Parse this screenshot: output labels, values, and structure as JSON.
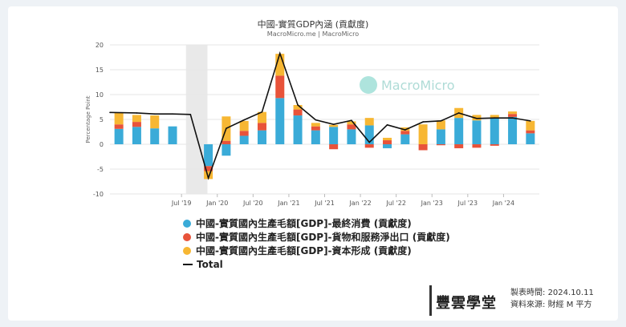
{
  "chart_data": {
    "type": "bar",
    "title": "中國-實質GDP內涵 (貢獻度)",
    "subtitle": "MacroMicro.me | MacroMicro",
    "ylabel": "Percentage Point",
    "ylim": [
      -10,
      20
    ],
    "yticks": [
      -10,
      -5,
      0,
      5,
      10,
      15,
      20
    ],
    "x_tick_labels": [
      "Jul '19",
      "Jan '20",
      "Jul '20",
      "Jan '21",
      "Jul '21",
      "Jan '22",
      "Jul '22",
      "Jan '23",
      "Jul '23",
      "Jan '24"
    ],
    "grid": true,
    "legend": "bottom",
    "stacked": true,
    "categories": [
      "Q3 '18",
      "Q4 '18",
      "Q1 '19",
      "Q2 '19",
      "Q3 '19",
      "Q4 '19",
      "Q1 '20",
      "Q2 '20",
      "Q3 '20",
      "Q4 '20",
      "Q1 '21",
      "Q2 '21",
      "Q3 '21",
      "Q4 '21",
      "Q1 '22",
      "Q2 '22",
      "Q3 '22",
      "Q4 '22",
      "Q1 '23",
      "Q2 '23",
      "Q3 '23",
      "Q4 '23",
      "Q1 '24",
      "Q2 '24"
    ],
    "series": [
      {
        "name": "中國-實質國內生產毛額[GDP]-最終消費 (貢獻度)",
        "color": "#3aabd8",
        "values": [
          3.1,
          3.5,
          3.2,
          3.6,
          null,
          -4.4,
          -2.3,
          1.7,
          2.8,
          9.3,
          5.8,
          2.8,
          3.5,
          3.0,
          3.8,
          -0.8,
          2.0,
          null,
          3.0,
          5.3,
          4.8,
          5.3,
          5.5,
          2.2
        ]
      }
    ],
    "series_all": [
      {
        "name": "中國-實質國內生產毛額[GDP]-最終消費 (貢獻度)",
        "color": "#3aabd8",
        "values": [
          3.1,
          3.5,
          3.2,
          3.6,
          null,
          -4.4,
          -2.3,
          1.7,
          2.8,
          9.3,
          5.8,
          2.8,
          3.5,
          3.0,
          3.8,
          -0.8,
          2.0,
          null,
          3.0,
          5.3,
          4.8,
          5.3,
          5.5,
          2.2
        ]
      },
      {
        "name": "中國-實質國內生產毛額[GDP]-貨物和服務淨出口 (貢獻度)",
        "color": "#e8533a",
        "values": [
          0.9,
          1.0,
          null,
          null,
          null,
          -1.0,
          0.7,
          1.0,
          1.5,
          4.5,
          1.2,
          0.8,
          -1.0,
          1.0,
          -0.7,
          0.8,
          0.7,
          -1.2,
          -0.2,
          -0.8,
          -0.7,
          -0.3,
          0.6,
          0.6
        ]
      },
      {
        "name": "中國-實質國內生產毛額[GDP]-資本形成 (貢獻度)",
        "color": "#f7b733",
        "values": [
          2.3,
          1.4,
          2.6,
          null,
          null,
          -1.6,
          4.9,
          2.0,
          2.2,
          4.4,
          0.9,
          0.7,
          0.4,
          0.6,
          1.5,
          0.5,
          0.7,
          4.0,
          1.8,
          2.0,
          1.1,
          0.6,
          0.5,
          1.9
        ]
      }
    ],
    "total": {
      "name": "Total",
      "color": "#111111",
      "values": [
        6.4,
        6.3,
        6.1,
        6.1,
        6.0,
        -6.8,
        3.2,
        4.9,
        6.5,
        18.3,
        7.9,
        4.9,
        4.0,
        4.8,
        0.4,
        3.9,
        2.9,
        4.5,
        4.7,
        6.3,
        5.2,
        5.3,
        5.3,
        4.7
      ]
    }
  },
  "watermark": "MacroMicro",
  "footer": {
    "brand": "豐雲學堂",
    "made_label": "製表時間:",
    "made_value": "2024.10.11",
    "source_label": "資料來源:",
    "source_value": "財經 M 平方"
  }
}
